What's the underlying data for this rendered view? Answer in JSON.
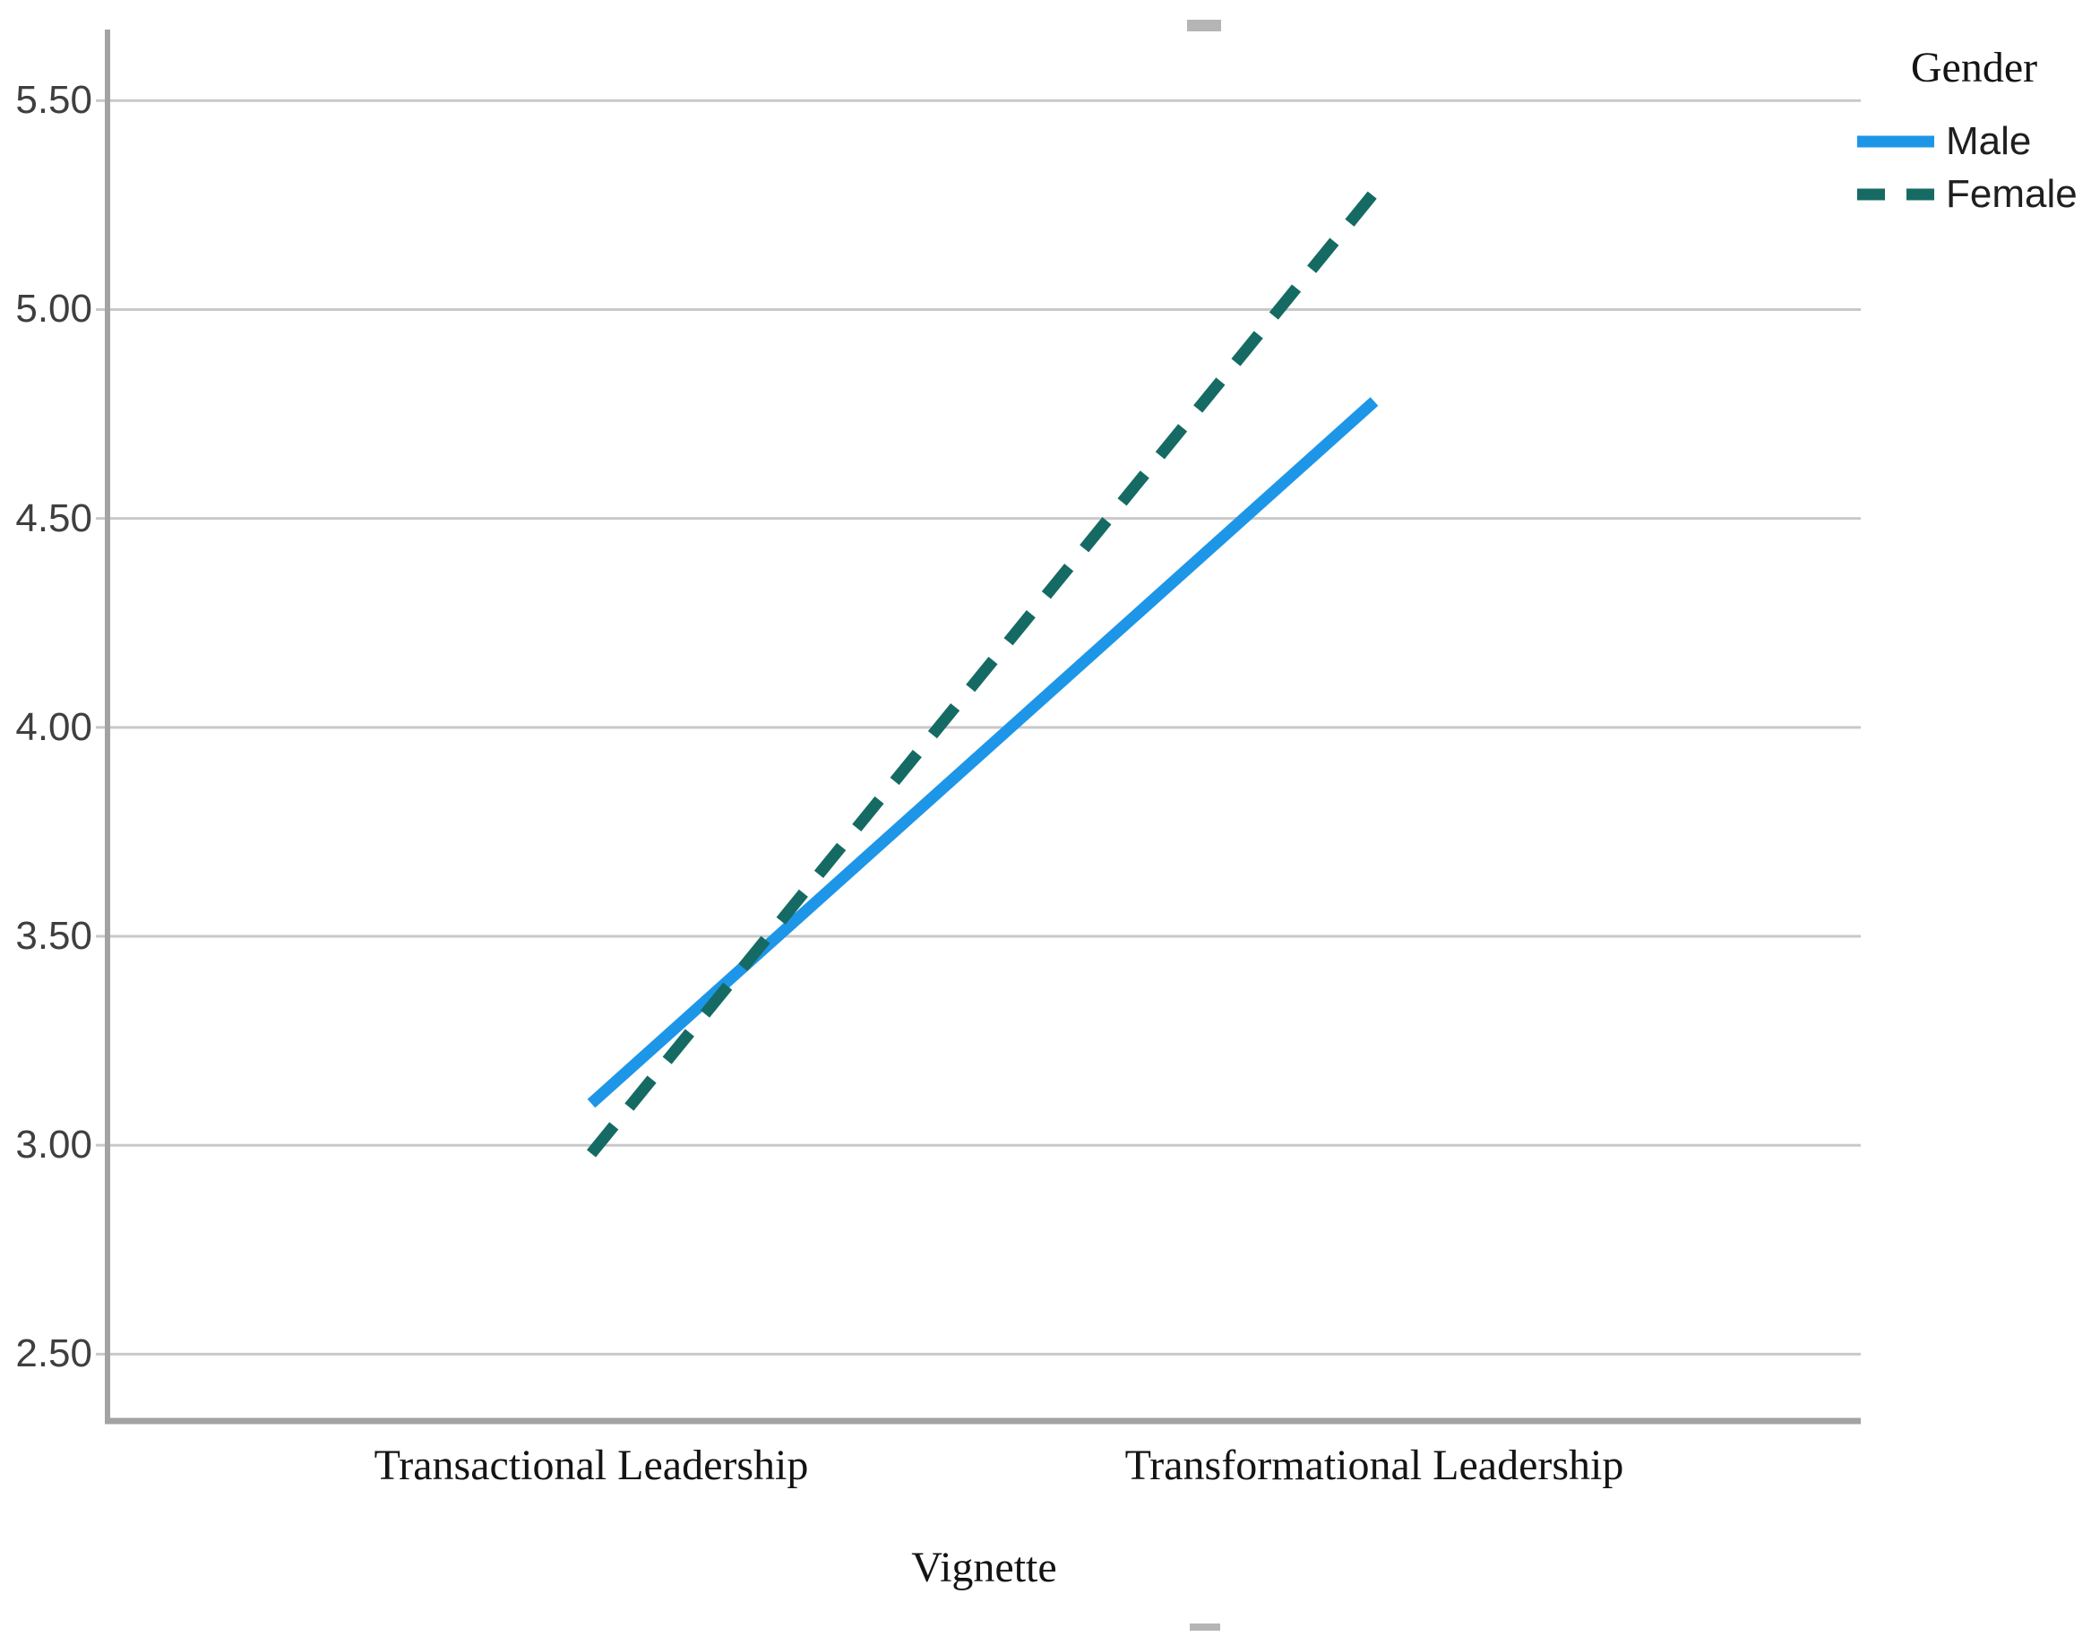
{
  "figure": {
    "background": "#ffffff"
  },
  "chart_data": {
    "type": "line",
    "categories": [
      "Transactional Leadership",
      "Transformational Leadership"
    ],
    "series": [
      {
        "name": "Male",
        "values": [
          3.1,
          4.78
        ],
        "color": "#1e96e8",
        "line_style": "solid"
      },
      {
        "name": "Female",
        "values": [
          2.98,
          5.28
        ],
        "color": "#156b63",
        "line_style": "dashed"
      }
    ],
    "title": "",
    "xlabel": "Vignette",
    "ylabel": "",
    "ylim": [
      2.34,
      5.67
    ],
    "yticks": [
      "2.50",
      "3.00",
      "3.50",
      "4.00",
      "4.50",
      "5.00",
      "5.50"
    ],
    "grid": true,
    "legend": {
      "title": "Gender",
      "position": "top-right"
    }
  },
  "colors": {
    "male_line": "#1e96e8",
    "female_line": "#156b63",
    "gridline": "#c9c9c9",
    "axis_line": "#a3a3a3",
    "tick_text": "#3f3f3f",
    "label_text": "#141414",
    "handle": "#b5b5b5"
  }
}
